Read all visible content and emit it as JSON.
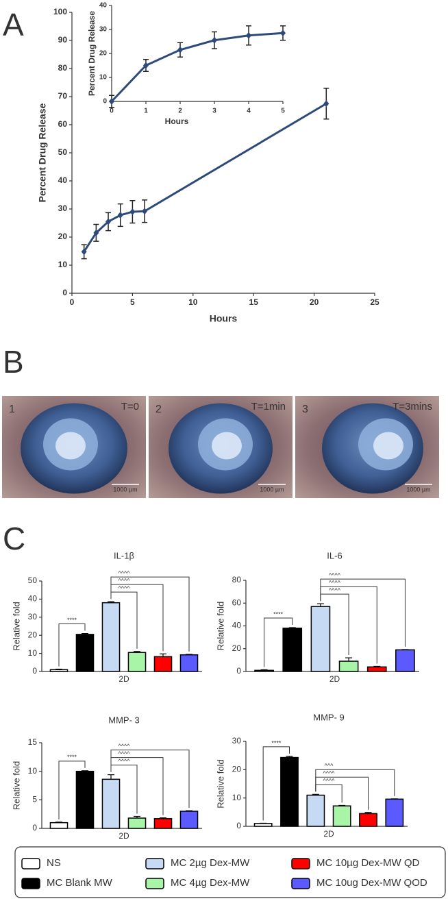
{
  "panel_labels": [
    "A",
    "B",
    "C"
  ],
  "images": [
    {
      "number": "1",
      "time": "T=0",
      "scale": "1000 µm"
    },
    {
      "number": "2",
      "time": "T=1min",
      "scale": "1000 µm"
    },
    {
      "number": "3",
      "time": "T=3mins",
      "scale": "1000 µm"
    }
  ],
  "legend": {
    "labels": [
      "NS",
      "MC Blank MW",
      "MC 2µg Dex-MW",
      "MC 4µg Dex-MW",
      "MC 10µg Dex-MW QD",
      "MC 10ug Dex-MW QOD"
    ],
    "colors": [
      "#ffffff",
      "#000000",
      "#c6dbf3",
      "#a8f5a8",
      "#ff0000",
      "#5a5aff"
    ]
  },
  "chart_data": [
    {
      "type": "line",
      "xlabel": "Hours",
      "ylabel": "Percent Drug Release",
      "color": "#2e4a7a",
      "x": [
        1,
        2,
        3,
        4,
        5,
        6,
        21
      ],
      "values": [
        14.8,
        21.5,
        25.5,
        27.8,
        29,
        29.2,
        67.5
      ],
      "errors": [
        2.5,
        3,
        3.2,
        4,
        4,
        4,
        5.5
      ],
      "xlim": [
        0,
        25
      ],
      "xticks": [
        0,
        5,
        10,
        15,
        20,
        25
      ],
      "ylim": [
        0,
        100
      ],
      "yticks": [
        0,
        10,
        20,
        30,
        40,
        50,
        60,
        70,
        80,
        90,
        100
      ]
    },
    {
      "type": "line",
      "xlabel": "Hours",
      "ylabel": "Percent Drug Release",
      "color": "#2e4a7a",
      "x": [
        0,
        1,
        2,
        3,
        4,
        5
      ],
      "values": [
        0,
        15,
        21.5,
        25.5,
        27.5,
        28.5
      ],
      "errors": [
        2.5,
        2.5,
        3,
        3.5,
        4,
        3
      ],
      "xlim": [
        0,
        5
      ],
      "xticks": [
        0,
        1,
        2,
        3,
        4,
        5
      ],
      "ylim": [
        0,
        40
      ],
      "yticks": [
        0,
        10,
        20,
        30,
        40
      ]
    },
    {
      "type": "bar",
      "title": "IL-1β",
      "ylabel": "Relative fold",
      "xlabel": "2D",
      "values": [
        1,
        20.5,
        38,
        10.5,
        8.2,
        9.2
      ],
      "errors": [
        0.3,
        0.5,
        0.6,
        0.6,
        1.5,
        0.3
      ],
      "ylim": [
        0,
        50
      ],
      "yticks": [
        0,
        10,
        20,
        30,
        40,
        50
      ],
      "brackets": [
        {
          "from": 0,
          "to": 1,
          "label": "****"
        },
        {
          "from": 2,
          "to": 3,
          "label": "^^^^"
        },
        {
          "from": 2,
          "to": 4,
          "label": "^^^^"
        },
        {
          "from": 2,
          "to": 5,
          "label": "^^^^"
        }
      ]
    },
    {
      "type": "bar",
      "title": "IL-6",
      "ylabel": "Relative fold",
      "xlabel": "2D",
      "values": [
        1,
        38,
        57,
        9,
        4,
        19
      ],
      "errors": [
        0.5,
        0.5,
        2.5,
        3,
        0.5,
        0.3
      ],
      "ylim": [
        0,
        80
      ],
      "yticks": [
        0,
        20,
        40,
        60,
        80
      ],
      "brackets": [
        {
          "from": 0,
          "to": 1,
          "label": "****"
        },
        {
          "from": 2,
          "to": 3,
          "label": "^^^^"
        },
        {
          "from": 2,
          "to": 4,
          "label": "^^^^"
        },
        {
          "from": 2,
          "to": 5,
          "label": "^^^^"
        }
      ]
    },
    {
      "type": "bar",
      "title": "MMP- 3",
      "ylabel": "Relative fold",
      "xlabel": "2D",
      "values": [
        1,
        10,
        8.6,
        1.8,
        1.7,
        3
      ],
      "errors": [
        0.1,
        0.1,
        0.8,
        0.3,
        0.15,
        0.1
      ],
      "ylim": [
        0,
        15
      ],
      "yticks": [
        0,
        5,
        10,
        15
      ],
      "brackets": [
        {
          "from": 0,
          "to": 1,
          "label": "****"
        },
        {
          "from": 2,
          "to": 3,
          "label": "^^^^"
        },
        {
          "from": 2,
          "to": 4,
          "label": "^^^^"
        },
        {
          "from": 2,
          "to": 5,
          "label": "^^^^"
        }
      ]
    },
    {
      "type": "bar",
      "title": "MMP- 9",
      "ylabel": "Relative fold",
      "xlabel": "2D",
      "values": [
        1,
        24.3,
        11,
        7.2,
        4.5,
        9.6
      ],
      "errors": [
        0.1,
        0.4,
        0.3,
        0.2,
        0.4,
        0.1
      ],
      "ylim": [
        0,
        30
      ],
      "yticks": [
        0,
        10,
        20,
        30
      ],
      "brackets": [
        {
          "from": 0,
          "to": 1,
          "label": "****"
        },
        {
          "from": 2,
          "to": 3,
          "label": "^^^^"
        },
        {
          "from": 2,
          "to": 4,
          "label": "^^^^"
        },
        {
          "from": 2,
          "to": 5,
          "label": "^^^"
        }
      ]
    }
  ]
}
